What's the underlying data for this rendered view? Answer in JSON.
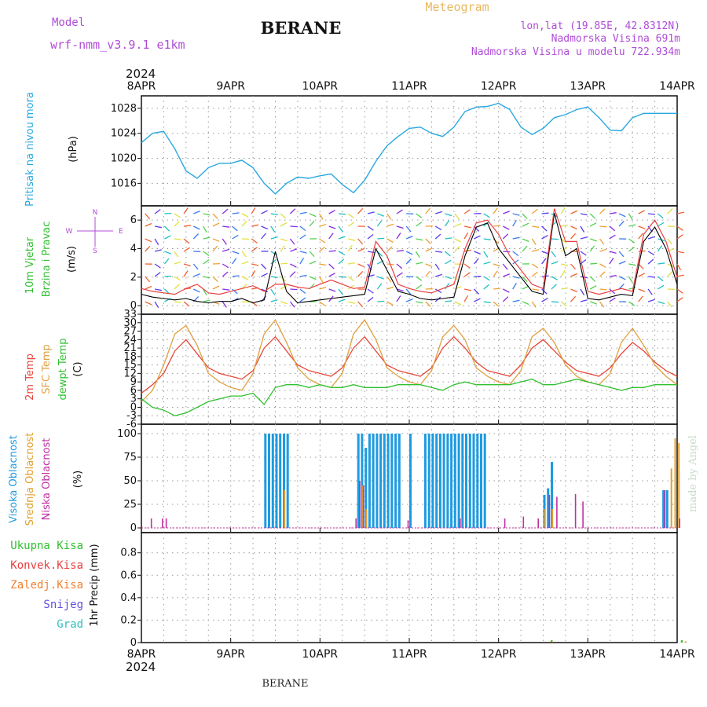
{
  "header": {
    "model_label": "Model",
    "model_name": "wrf-nmm_v3.9.1 e1km",
    "station": "BERANE",
    "product": "Meteogram",
    "coords": "lon,lat (19.85E, 42.8312N)",
    "elevation": "Nadmorska Visina 691m",
    "model_elevation": "Nadmorska Visina u modelu 722.934m",
    "footer_station": "BERANE",
    "credit": "made by Angel",
    "year": "2024"
  },
  "colors": {
    "pressure": "#29a8e0",
    "temp2m": "#e8463a",
    "sfc_temp": "#e0a040",
    "dewpt": "#30c030",
    "wind_speed": "#000000",
    "gust": "#e84040",
    "high_cloud": "#1e9be0",
    "mid_cloud": "#e0a030",
    "low_cloud": "#c030a0",
    "total_precip": "#30c030",
    "conv_precip": "#e84040",
    "frz_precip": "#f08030",
    "snow": "#6050e0",
    "graupel": "#30c0c0",
    "label_purple": "#b04cd8",
    "label_orange": "#e8b860"
  },
  "chart_data": [
    {
      "type": "line",
      "title": "",
      "ylabel_lines": [
        "Pritisak na nivou mora",
        "(hPa)"
      ],
      "x_categories": [
        "8APR",
        "9APR",
        "10APR",
        "11APR",
        "12APR",
        "13APR",
        "14APR"
      ],
      "yticks": [
        1016,
        1020,
        1024,
        1028
      ],
      "ylim": [
        1012.4,
        1030
      ],
      "grid": true,
      "series": [
        {
          "key": "pressure",
          "x_hours": [
            0,
            3,
            6,
            9,
            12,
            15,
            18,
            21,
            24,
            27,
            30,
            33,
            36,
            39,
            42,
            45,
            48,
            51,
            54,
            57,
            60,
            63,
            66,
            69,
            72,
            75,
            78,
            81,
            84,
            87,
            90,
            93,
            96,
            99,
            102,
            105,
            108,
            111,
            114,
            117,
            120,
            123,
            126,
            129,
            132,
            135,
            138,
            141,
            144
          ],
          "values": [
            1022.5,
            1024.0,
            1024.3,
            1021.5,
            1018.0,
            1016.8,
            1018.5,
            1019.2,
            1019.2,
            1019.7,
            1018.5,
            1016.0,
            1014.3,
            1016.0,
            1017.0,
            1016.8,
            1017.2,
            1017.5,
            1015.8,
            1014.5,
            1016.5,
            1019.5,
            1022.0,
            1023.5,
            1024.8,
            1025.0,
            1024.0,
            1023.5,
            1025.0,
            1027.5,
            1028.2,
            1028.3,
            1028.8,
            1027.8,
            1025.0,
            1023.8,
            1024.8,
            1026.5,
            1027.0,
            1027.8,
            1028.2,
            1026.5,
            1024.5,
            1024.4,
            1026.5,
            1027.2,
            1027.2,
            1027.2,
            1027.2
          ]
        }
      ]
    },
    {
      "type": "line",
      "title": "",
      "ylabel_lines": [
        "10m Vjetar",
        "Brzina i Pravac",
        "(m/s)"
      ],
      "direction_key": [
        "N",
        "W",
        "E",
        "S"
      ],
      "yticks": [
        0,
        2,
        4,
        6
      ],
      "ylim": [
        -0.6,
        7
      ],
      "grid": true,
      "series": [
        {
          "key": "wind_speed",
          "x_hours": [
            0,
            3,
            6,
            9,
            12,
            15,
            18,
            21,
            24,
            27,
            30,
            33,
            36,
            39,
            42,
            45,
            48,
            51,
            54,
            57,
            60,
            63,
            66,
            69,
            72,
            75,
            78,
            81,
            84,
            87,
            90,
            93,
            96,
            99,
            102,
            105,
            108,
            111,
            114,
            117,
            120,
            123,
            126,
            129,
            132,
            135,
            138,
            141,
            144
          ],
          "values": [
            0.8,
            0.6,
            0.5,
            0.4,
            0.5,
            0.3,
            0.2,
            0.3,
            0.3,
            0.5,
            0.2,
            0.4,
            3.8,
            1.0,
            0.2,
            0.3,
            0.4,
            0.5,
            0.6,
            0.7,
            0.8,
            4.0,
            2.5,
            1.0,
            0.8,
            0.5,
            0.4,
            0.5,
            0.6,
            3.5,
            5.5,
            5.8,
            4.0,
            3.0,
            2.0,
            1.0,
            0.8,
            6.5,
            3.5,
            4.0,
            0.5,
            0.4,
            0.6,
            0.8,
            0.7,
            4.5,
            5.5,
            4.0,
            1.5
          ]
        },
        {
          "key": "gust",
          "x_hours": [
            0,
            3,
            6,
            9,
            12,
            15,
            18,
            21,
            24,
            27,
            30,
            33,
            36,
            39,
            42,
            45,
            48,
            51,
            54,
            57,
            60,
            63,
            66,
            69,
            72,
            75,
            78,
            81,
            84,
            87,
            90,
            93,
            96,
            99,
            102,
            105,
            108,
            111,
            114,
            117,
            120,
            123,
            126,
            129,
            132,
            135,
            138,
            141,
            144
          ],
          "values": [
            1.2,
            1.0,
            0.9,
            0.8,
            1.2,
            1.5,
            0.9,
            0.8,
            1.0,
            1.2,
            1.4,
            1.0,
            1.5,
            1.5,
            1.3,
            1.2,
            1.5,
            1.8,
            1.5,
            1.2,
            1.3,
            4.5,
            3.5,
            1.5,
            1.2,
            1.0,
            0.9,
            1.2,
            1.5,
            4.0,
            5.8,
            6.0,
            5.0,
            3.5,
            2.5,
            1.5,
            1.2,
            6.8,
            4.5,
            4.5,
            1.0,
            0.8,
            1.0,
            1.2,
            1.0,
            5.0,
            6.0,
            4.5,
            2.0
          ]
        }
      ]
    },
    {
      "type": "line",
      "title": "",
      "ylabel_lines": [
        "2m Temp",
        "SFC Temp",
        "dewpt Temp",
        "(C)"
      ],
      "yticks": [
        -6,
        -3,
        0,
        3,
        6,
        9,
        12,
        15,
        18,
        21,
        24,
        27,
        30,
        33
      ],
      "ylim": [
        -6,
        33
      ],
      "grid": true,
      "series": [
        {
          "key": "temp2m",
          "x_hours": [
            0,
            3,
            6,
            9,
            12,
            15,
            18,
            21,
            24,
            27,
            30,
            33,
            36,
            39,
            42,
            45,
            48,
            51,
            54,
            57,
            60,
            63,
            66,
            69,
            72,
            75,
            78,
            81,
            84,
            87,
            90,
            93,
            96,
            99,
            102,
            105,
            108,
            111,
            114,
            117,
            120,
            123,
            126,
            129,
            132,
            135,
            138,
            141,
            144
          ],
          "values": [
            5,
            8,
            12,
            20,
            24,
            19,
            14,
            12,
            11,
            10,
            13,
            21,
            25,
            20,
            15,
            13,
            12,
            11,
            14,
            21,
            25,
            20,
            15,
            13,
            12,
            11,
            14,
            21,
            25,
            21,
            16,
            13,
            12,
            11,
            15,
            21,
            24,
            20,
            16,
            13,
            12,
            11,
            14,
            19,
            23,
            20,
            16,
            13,
            11
          ]
        },
        {
          "key": "sfc_temp",
          "x_hours": [
            0,
            3,
            6,
            9,
            12,
            15,
            18,
            21,
            24,
            27,
            30,
            33,
            36,
            39,
            42,
            45,
            48,
            51,
            54,
            57,
            60,
            63,
            66,
            69,
            72,
            75,
            78,
            81,
            84,
            87,
            90,
            93,
            96,
            99,
            102,
            105,
            108,
            111,
            114,
            117,
            120,
            123,
            126,
            129,
            132,
            135,
            138,
            141,
            144
          ],
          "values": [
            2,
            6,
            15,
            26,
            29,
            22,
            12,
            9,
            7,
            6,
            12,
            26,
            31,
            23,
            14,
            10,
            8,
            7,
            12,
            26,
            31,
            24,
            14,
            11,
            9,
            8,
            13,
            25,
            29,
            24,
            14,
            11,
            9,
            8,
            13,
            25,
            28,
            23,
            15,
            11,
            9,
            8,
            12,
            23,
            28,
            22,
            15,
            11,
            8
          ]
        },
        {
          "key": "dewpt",
          "x_hours": [
            0,
            3,
            6,
            9,
            12,
            15,
            18,
            21,
            24,
            27,
            30,
            33,
            36,
            39,
            42,
            45,
            48,
            51,
            54,
            57,
            60,
            63,
            66,
            69,
            72,
            75,
            78,
            81,
            84,
            87,
            90,
            93,
            96,
            99,
            102,
            105,
            108,
            111,
            114,
            117,
            120,
            123,
            126,
            129,
            132,
            135,
            138,
            141,
            144
          ],
          "values": [
            3,
            0,
            -1,
            -3,
            -2,
            0,
            2,
            3,
            4,
            4,
            5,
            1,
            7,
            8,
            8,
            7,
            8,
            7,
            7,
            8,
            7,
            7,
            7,
            8,
            8,
            8,
            7,
            6,
            8,
            9,
            8,
            8,
            8,
            8,
            9,
            10,
            8,
            8,
            9,
            10,
            9,
            8,
            7,
            6,
            7,
            7,
            8,
            8,
            8
          ]
        }
      ]
    },
    {
      "type": "bar",
      "title": "",
      "ylabel_lines": [
        "Visoka Oblacnost",
        "Srednja Oblacnost",
        "Niska Oblacnost",
        "(%)"
      ],
      "yticks": [
        0,
        25,
        50,
        75,
        100
      ],
      "ylim": [
        -5,
        110
      ],
      "grid": true,
      "series": [
        {
          "key": "high_cloud",
          "x_hours": [
            33,
            34,
            35,
            36,
            37,
            38,
            39,
            58,
            59,
            60,
            61,
            62,
            63,
            64,
            65,
            66,
            67,
            68,
            69,
            72,
            76,
            77,
            78,
            79,
            80,
            81,
            82,
            83,
            84,
            85,
            86,
            87,
            88,
            89,
            90,
            91,
            92,
            108,
            109,
            110,
            140,
            141
          ],
          "values": [
            100,
            100,
            100,
            100,
            100,
            100,
            100,
            100,
            100,
            85,
            100,
            100,
            100,
            100,
            100,
            100,
            100,
            100,
            100,
            100,
            100,
            100,
            100,
            100,
            100,
            100,
            100,
            100,
            100,
            100,
            100,
            100,
            100,
            100,
            100,
            100,
            100,
            35,
            42,
            70,
            40,
            40
          ]
        },
        {
          "key": "mid_cloud",
          "x_hours": [
            38,
            59,
            60,
            108,
            110,
            142,
            143,
            144
          ],
          "values": [
            40,
            45,
            20,
            20,
            20,
            63,
            95,
            90
          ]
        },
        {
          "key": "low_cloud",
          "x_hours": [
            2,
            5,
            6,
            57,
            58,
            59,
            71,
            85,
            97,
            102,
            106,
            109,
            111,
            116,
            118,
            140,
            144
          ],
          "values": [
            10,
            10,
            10,
            10,
            50,
            45,
            8,
            10,
            10,
            12,
            10,
            35,
            33,
            36,
            28,
            40,
            10
          ]
        }
      ]
    },
    {
      "type": "bar",
      "title": "",
      "ylabel_lines": [
        "1hr Precip (mm)"
      ],
      "legend": [
        "Ukupna Kisa",
        "Konvek.Kisa",
        "Zaledj.Kisa",
        "Snijeg",
        "Grad"
      ],
      "x_categories": [
        "8APR",
        "9APR",
        "10APR",
        "11APR",
        "12APR",
        "13APR",
        "14APR"
      ],
      "yticks": [
        0,
        0.2,
        0.4,
        0.6,
        0.8
      ],
      "ylim": [
        0,
        0.98
      ],
      "grid": true,
      "series": [
        {
          "key": "total_precip",
          "x_hours": [
            110,
            145
          ],
          "values": [
            0.02,
            0.02
          ]
        },
        {
          "key": "frz_precip",
          "x_hours": [
            110,
            146
          ],
          "values": [
            0.01,
            0.01
          ]
        }
      ]
    }
  ]
}
